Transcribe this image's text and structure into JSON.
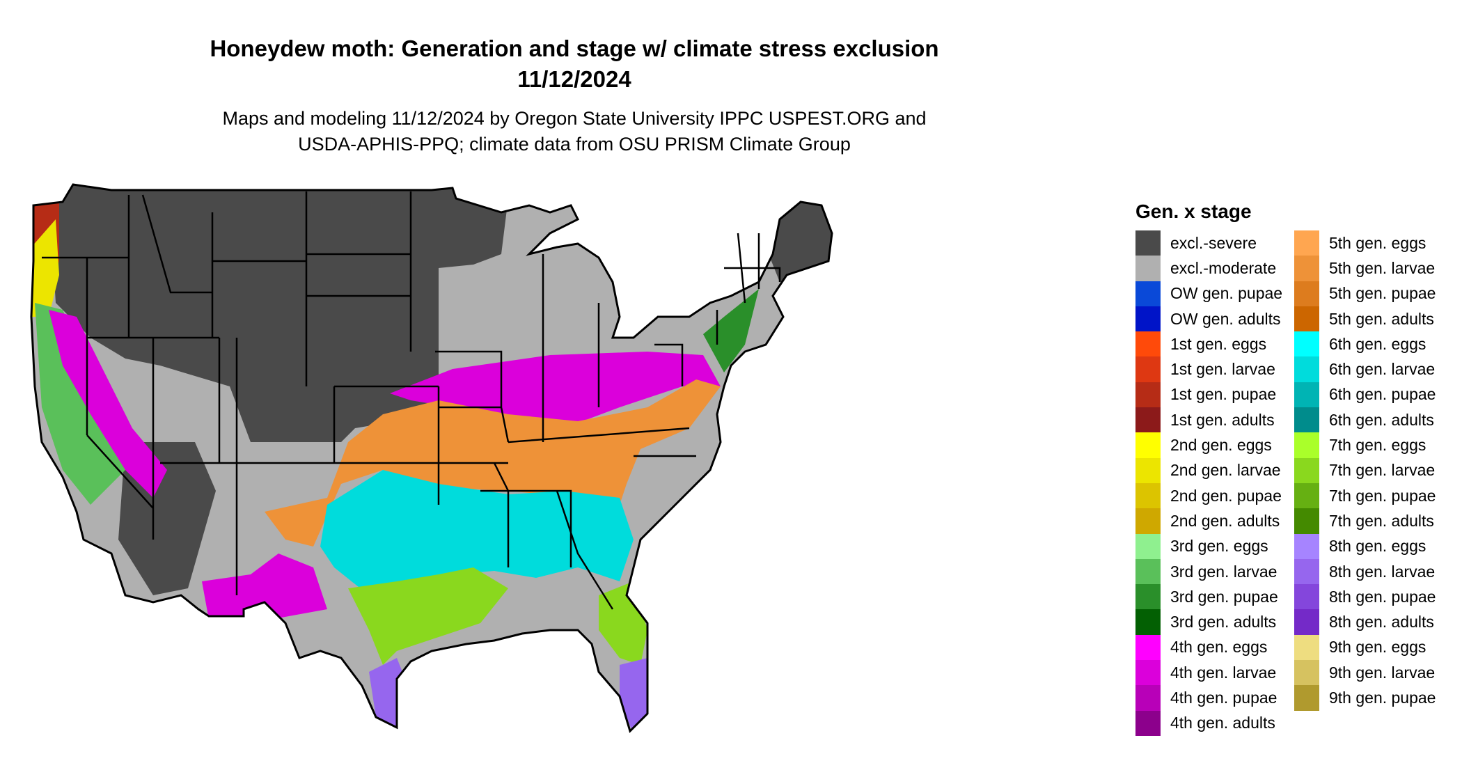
{
  "title_lines": [
    "Honeydew moth: Generation and stage w/ climate stress exclusion",
    "11/12/2024"
  ],
  "subtitle_lines": [
    "Maps and modeling 11/12/2024 by Oregon State University IPPC USPEST.ORG and",
    "USDA-APHIS-PPQ; climate data from OSU PRISM Climate Group"
  ],
  "legend": {
    "title": "Gen. x stage",
    "columns": [
      [
        {
          "label": "excl.-severe",
          "color": "#4a4a4a"
        },
        {
          "label": "excl.-moderate",
          "color": "#b0b0b0"
        },
        {
          "label": "OW gen. pupae",
          "color": "#0a49d8"
        },
        {
          "label": "OW gen. adults",
          "color": "#0014c8"
        },
        {
          "label": "1st gen. eggs",
          "color": "#ff4a0a"
        },
        {
          "label": "1st gen. larvae",
          "color": "#de3812"
        },
        {
          "label": "1st gen. pupae",
          "color": "#b62c16"
        },
        {
          "label": "1st gen. adults",
          "color": "#8c1a1a"
        },
        {
          "label": "2nd gen. eggs",
          "color": "#ffff00"
        },
        {
          "label": "2nd gen. larvae",
          "color": "#ece500"
        },
        {
          "label": "2nd gen. pupae",
          "color": "#dcc400"
        },
        {
          "label": "2nd gen. adults",
          "color": "#cfa800"
        },
        {
          "label": "3rd gen. eggs",
          "color": "#8ff08f"
        },
        {
          "label": "3rd gen. larvae",
          "color": "#5ac05a"
        },
        {
          "label": "3rd gen. pupae",
          "color": "#2a8f2a"
        },
        {
          "label": "3rd gen. adults",
          "color": "#036003"
        },
        {
          "label": "4th gen. eggs",
          "color": "#ff00ff"
        },
        {
          "label": "4th gen. larvae",
          "color": "#db00db"
        },
        {
          "label": "4th gen. pupae",
          "color": "#b800b8"
        },
        {
          "label": "4th gen. adults",
          "color": "#8c008c"
        }
      ],
      [
        {
          "label": "5th gen. eggs",
          "color": "#ffa650"
        },
        {
          "label": "5th gen. larvae",
          "color": "#ee9238"
        },
        {
          "label": "5th gen. pupae",
          "color": "#dd7c1e"
        },
        {
          "label": "5th gen. adults",
          "color": "#cc6600"
        },
        {
          "label": "6th gen. eggs",
          "color": "#00ffff"
        },
        {
          "label": "6th gen. larvae",
          "color": "#00dcdc"
        },
        {
          "label": "6th gen. pupae",
          "color": "#00b4b4"
        },
        {
          "label": "6th gen. adults",
          "color": "#008c8c"
        },
        {
          "label": "7th gen. eggs",
          "color": "#aaff2a"
        },
        {
          "label": "7th gen. larvae",
          "color": "#8ad81e"
        },
        {
          "label": "7th gen. pupae",
          "color": "#66b012"
        },
        {
          "label": "7th gen. adults",
          "color": "#448a00"
        },
        {
          "label": "8th gen. eggs",
          "color": "#a684ff"
        },
        {
          "label": "8th gen. larvae",
          "color": "#9666ee"
        },
        {
          "label": "8th gen. pupae",
          "color": "#8446dc"
        },
        {
          "label": "8th gen. adults",
          "color": "#742ac8"
        },
        {
          "label": "9th gen. eggs",
          "color": "#eedd80"
        },
        {
          "label": "9th gen. larvae",
          "color": "#d6c260"
        },
        {
          "label": "9th gen. pupae",
          "color": "#b09a2e"
        }
      ]
    ]
  }
}
